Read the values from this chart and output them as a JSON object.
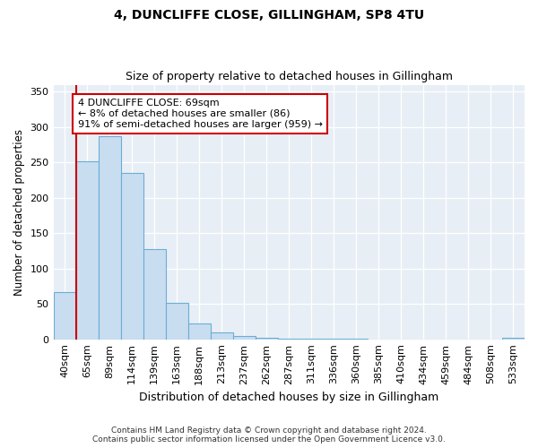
{
  "title1": "4, DUNCLIFFE CLOSE, GILLINGHAM, SP8 4TU",
  "title2": "Size of property relative to detached houses in Gillingham",
  "xlabel": "Distribution of detached houses by size in Gillingham",
  "ylabel": "Number of detached properties",
  "categories": [
    "40sqm",
    "65sqm",
    "89sqm",
    "114sqm",
    "139sqm",
    "163sqm",
    "188sqm",
    "213sqm",
    "237sqm",
    "262sqm",
    "287sqm",
    "311sqm",
    "336sqm",
    "360sqm",
    "385sqm",
    "410sqm",
    "434sqm",
    "459sqm",
    "484sqm",
    "508sqm",
    "533sqm"
  ],
  "values": [
    67,
    252,
    287,
    235,
    128,
    52,
    22,
    10,
    5,
    2,
    1,
    1,
    1,
    1,
    0,
    0,
    0,
    0,
    0,
    0,
    2
  ],
  "bar_color": "#c9ddf0",
  "bar_edge_color": "#6aaed6",
  "vline_color": "#cc0000",
  "annotation_text": "4 DUNCLIFFE CLOSE: 69sqm\n← 8% of detached houses are smaller (86)\n91% of semi-detached houses are larger (959) →",
  "annotation_box_color": "#ffffff",
  "annotation_box_edge": "#cc0000",
  "ylim": [
    0,
    360
  ],
  "yticks": [
    0,
    50,
    100,
    150,
    200,
    250,
    300,
    350
  ],
  "footnote": "Contains HM Land Registry data © Crown copyright and database right 2024.\nContains public sector information licensed under the Open Government Licence v3.0.",
  "figure_background": "#ffffff",
  "axes_background": "#e8eef5"
}
